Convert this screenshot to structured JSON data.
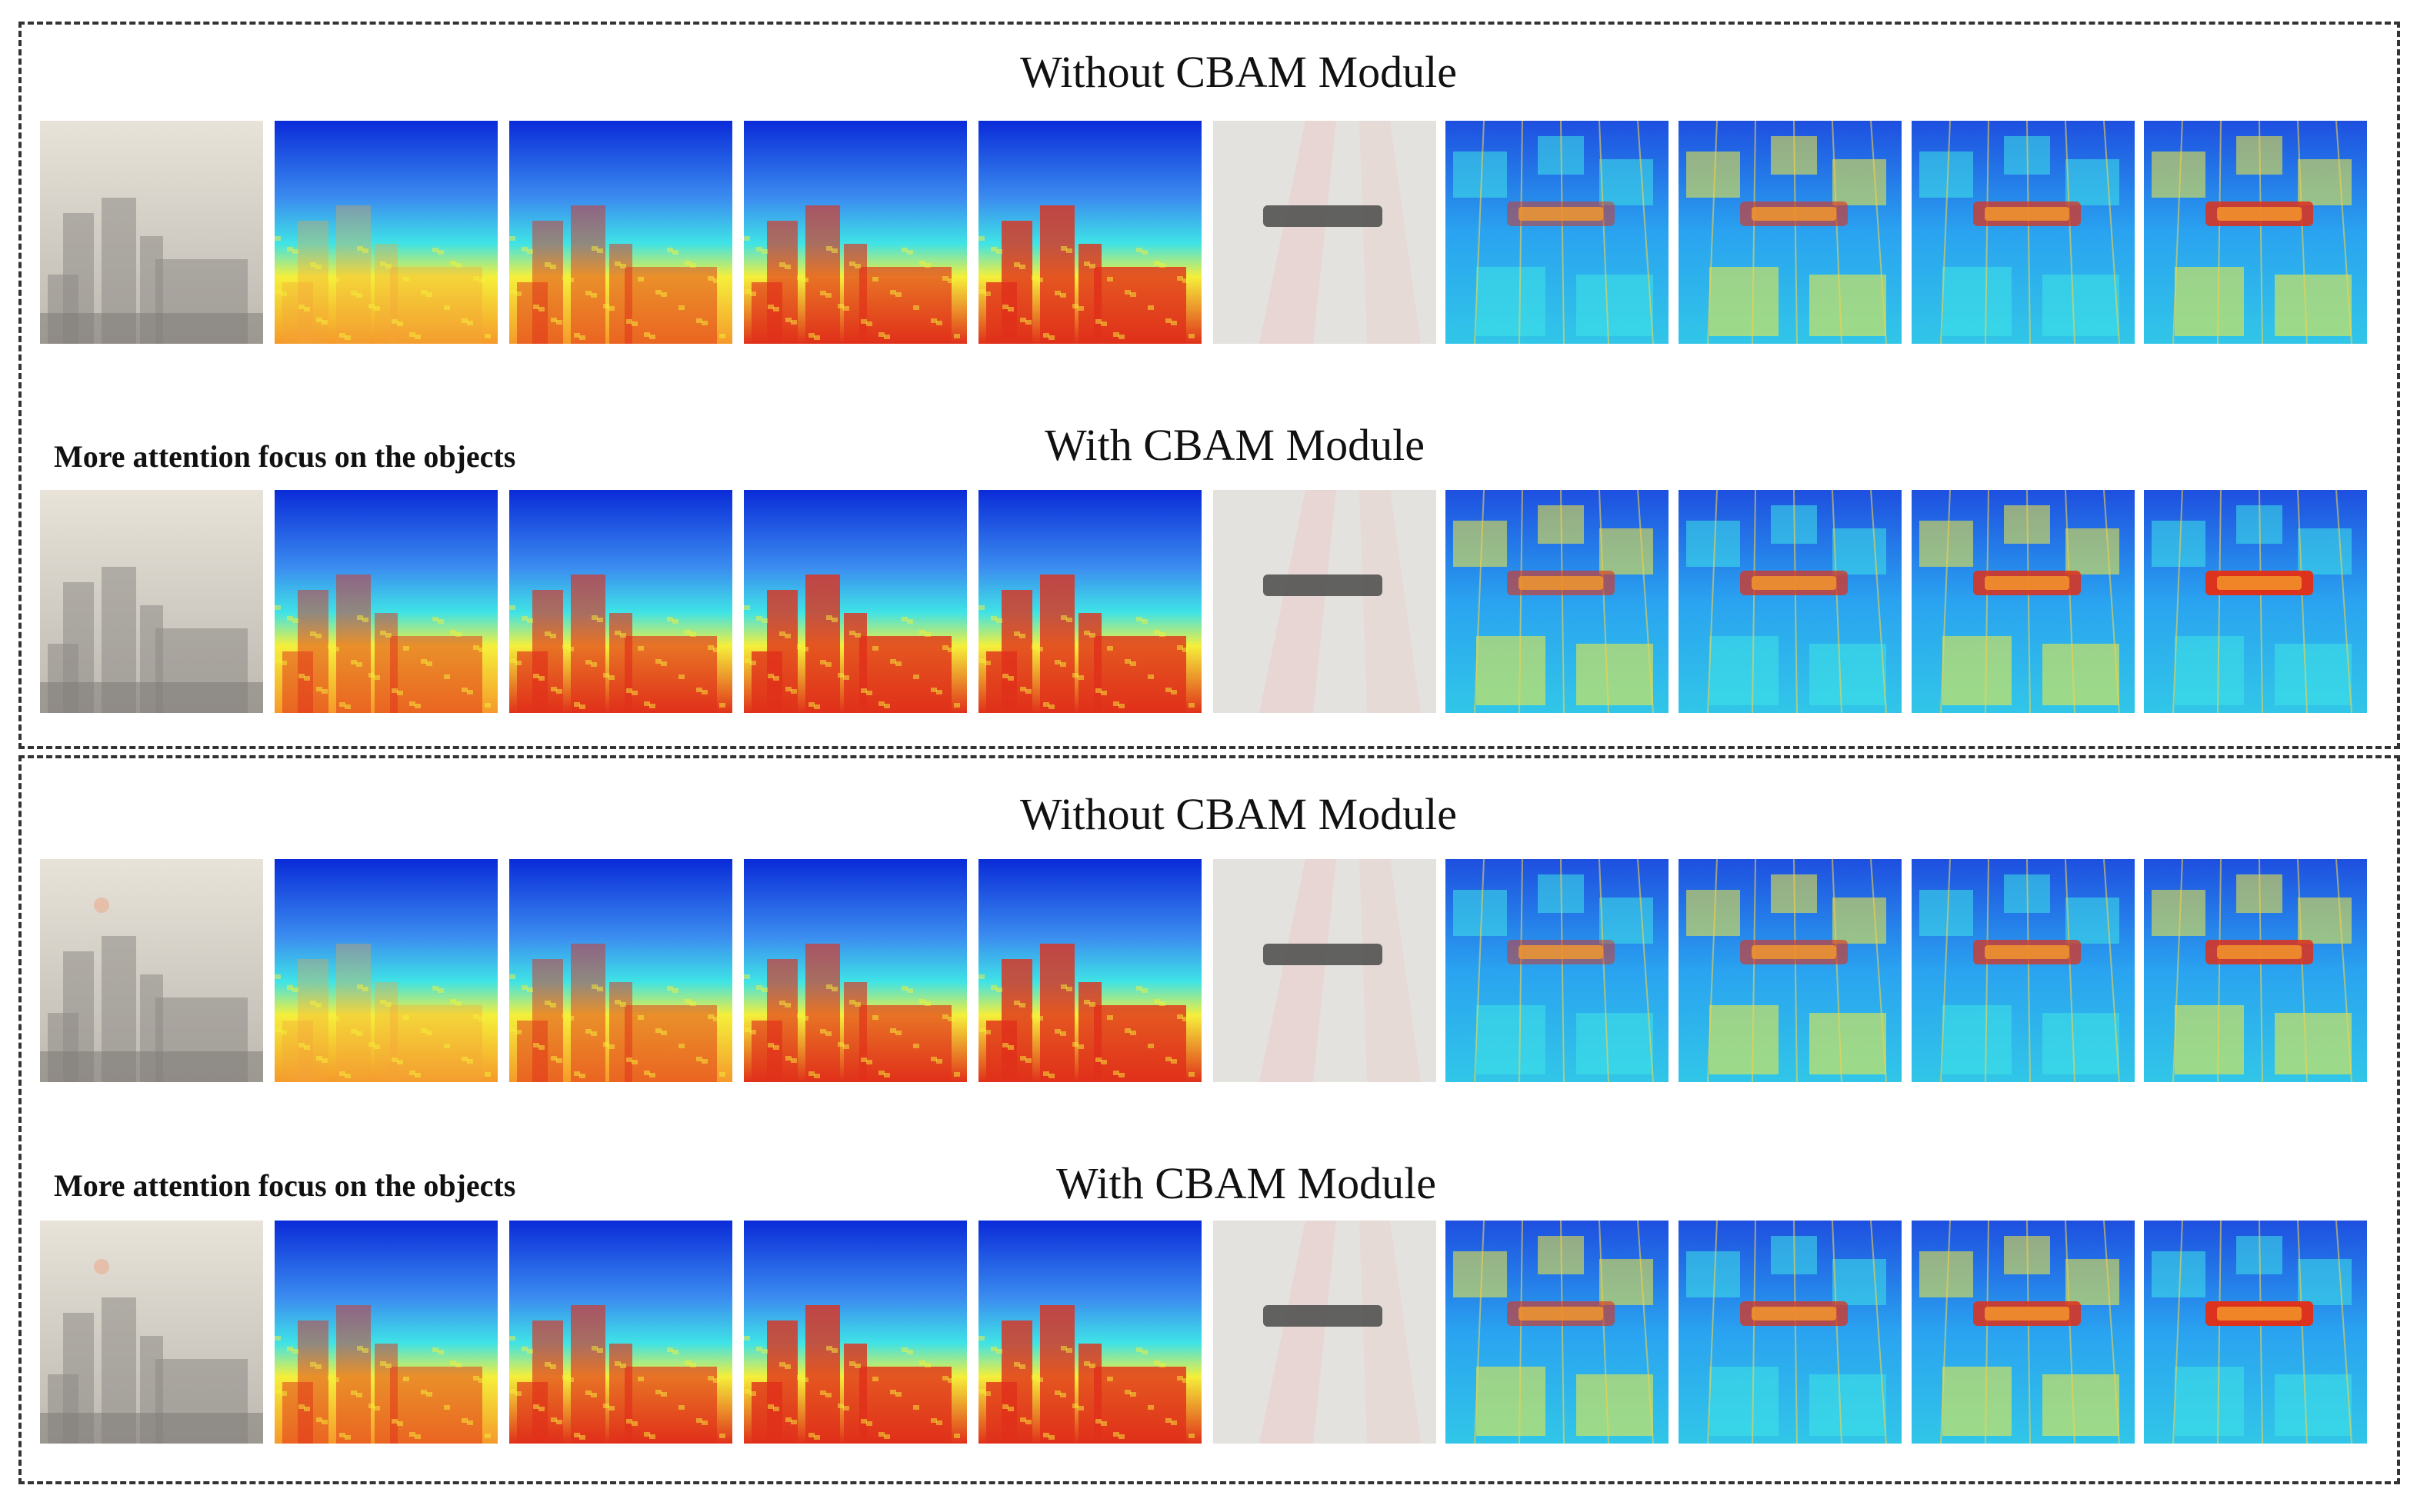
{
  "panels": [
    {
      "without_title": "Without CBAM Module",
      "with_title": "With CBAM Module",
      "with_note": "More attention focus on the objects"
    },
    {
      "without_title": "Without CBAM Module",
      "with_title": "With CBAM Module",
      "with_note": "More attention focus on the objects"
    }
  ],
  "colors": {
    "dash_border": "#333333",
    "heatmap_low": "#0a2bd8",
    "heatmap_mid": "#3fe3e6",
    "heatmap_yellow": "#f5ef3a",
    "heatmap_high": "#e0301a",
    "haze": "#c9c4bc"
  },
  "tiles": {
    "columns": [
      "haze-city-input",
      "city-heatmap-1",
      "city-heatmap-2",
      "city-heatmap-3",
      "city-heatmap-4",
      "floor-object-input",
      "floor-heatmap-1",
      "floor-heatmap-2",
      "floor-heatmap-3",
      "floor-heatmap-4"
    ]
  }
}
